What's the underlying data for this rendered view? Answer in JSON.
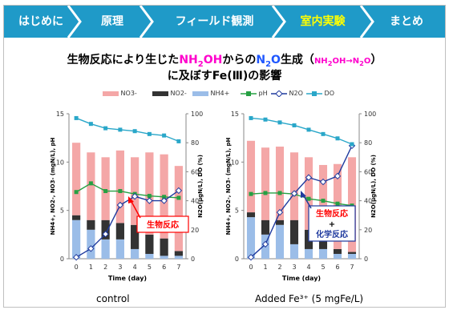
{
  "nav": {
    "items": [
      "はじめに",
      "原理",
      "フィールド観測",
      "室内実験",
      "まとめ"
    ],
    "active_index": 3
  },
  "title": {
    "line1_prefix": "生物反応により生じた",
    "nh2oh": "NH",
    "nh2oh_sub": "2",
    "nh2oh_end": "OH",
    "from": "からの",
    "n2o": "N",
    "n2o_sub": "2",
    "n2o_end": "O",
    "gen": "生成（",
    "conv_nh": "NH",
    "conv_sub1": "2",
    "conv_oh": "OH→N",
    "conv_sub2": "2",
    "conv_o": "O",
    "close": "）",
    "line2": "に及ぼすFe(Ⅲ)の影響"
  },
  "legend": {
    "items": [
      {
        "label": "NO3-",
        "color": "#f4a7a7",
        "kind": "box"
      },
      {
        "label": "NO2-",
        "color": "#333333",
        "kind": "box"
      },
      {
        "label": "NH4+",
        "color": "#9bbde8",
        "kind": "box"
      },
      {
        "label": "pH",
        "color": "#26a043",
        "kind": "line-square"
      },
      {
        "label": "N2O",
        "color": "#1f3a9e",
        "kind": "line-diamond"
      },
      {
        "label": "DO",
        "color": "#2aa7c9",
        "kind": "line-square"
      }
    ]
  },
  "colors": {
    "nav_bg": "#1f9ac8",
    "nav_active": "#ffff00",
    "no3": "#f4a7a7",
    "no2": "#333333",
    "nh4": "#9bbde8",
    "ph": "#26a043",
    "n2o": "#1f3a9e",
    "do": "#2aa7c9",
    "annot": "#ff0000"
  },
  "chart_data": [
    {
      "type": "bar",
      "caption": "control",
      "xlabel": "Time (day)",
      "ylabel_left": "NH4+, NO2-, NO3- (mgN/L), pH",
      "ylabel_right": "N2O(μgN/L), DO (%)",
      "x": [
        0,
        1,
        2,
        3,
        4,
        5,
        6,
        7
      ],
      "ylim_left": [
        0,
        15
      ],
      "ylim_right": [
        0,
        100
      ],
      "yticks_left": [
        0,
        5,
        10,
        15
      ],
      "yticks_right": [
        0,
        20,
        40,
        60,
        80,
        100
      ],
      "stacked_series": [
        {
          "name": "NH4+",
          "values": [
            4.0,
            3.0,
            2.0,
            2.0,
            1.0,
            0.5,
            0.3,
            0.3
          ]
        },
        {
          "name": "NO2-",
          "values": [
            0.5,
            1.0,
            2.0,
            1.7,
            2.5,
            2.0,
            1.8,
            0.5
          ]
        },
        {
          "name": "NO3-",
          "values": [
            7.5,
            7.0,
            6.5,
            7.5,
            7.0,
            8.5,
            8.7,
            8.8
          ]
        }
      ],
      "line_series": [
        {
          "name": "pH",
          "axis": "left",
          "values": [
            6.9,
            7.8,
            7.0,
            7.0,
            6.7,
            6.5,
            6.4,
            6.3
          ]
        },
        {
          "name": "N2O",
          "axis": "right",
          "values": [
            1,
            7,
            17,
            37,
            43,
            40,
            40,
            47
          ]
        },
        {
          "name": "DO",
          "axis": "right",
          "values": [
            97,
            93,
            90,
            89,
            88,
            86,
            85,
            81
          ]
        }
      ],
      "annotations": [
        {
          "text": "生物反応"
        }
      ]
    },
    {
      "type": "bar",
      "caption": "Added Fe³⁺ (5 mgFe/L)",
      "xlabel": "Time (day)",
      "ylabel_left": "NH4+, NO2-, NO3- (mgN/L), pH",
      "ylabel_right": "N2O(μgN/L), DO (%)",
      "x": [
        0,
        1,
        2,
        3,
        4,
        5,
        6,
        7
      ],
      "ylim_left": [
        0,
        15
      ],
      "ylim_right": [
        0,
        100
      ],
      "yticks_left": [
        0,
        5,
        10,
        15
      ],
      "yticks_right": [
        0,
        20,
        40,
        60,
        80,
        100
      ],
      "stacked_series": [
        {
          "name": "NH4+",
          "values": [
            4.3,
            2.5,
            3.5,
            1.5,
            1.0,
            1.0,
            0.5,
            0.5
          ]
        },
        {
          "name": "NO2-",
          "values": [
            0.5,
            1.5,
            0.5,
            2.5,
            2.0,
            1.5,
            0.5,
            0.2
          ]
        },
        {
          "name": "NO3-",
          "values": [
            7.4,
            7.5,
            7.6,
            7.0,
            7.5,
            7.2,
            8.8,
            9.8
          ]
        }
      ],
      "line_series": [
        {
          "name": "pH",
          "axis": "left",
          "values": [
            6.7,
            6.8,
            6.8,
            6.7,
            6.2,
            6.0,
            5.7,
            5.5
          ]
        },
        {
          "name": "N2O",
          "axis": "right",
          "values": [
            1,
            10,
            32,
            45,
            56,
            53,
            57,
            78
          ]
        },
        {
          "name": "DO",
          "axis": "right",
          "values": [
            97,
            96,
            94,
            92,
            89,
            86,
            83,
            79
          ]
        }
      ],
      "annotations": [
        {
          "text": "生物反応"
        },
        {
          "text": "+"
        },
        {
          "text": "化学反応"
        }
      ]
    }
  ]
}
